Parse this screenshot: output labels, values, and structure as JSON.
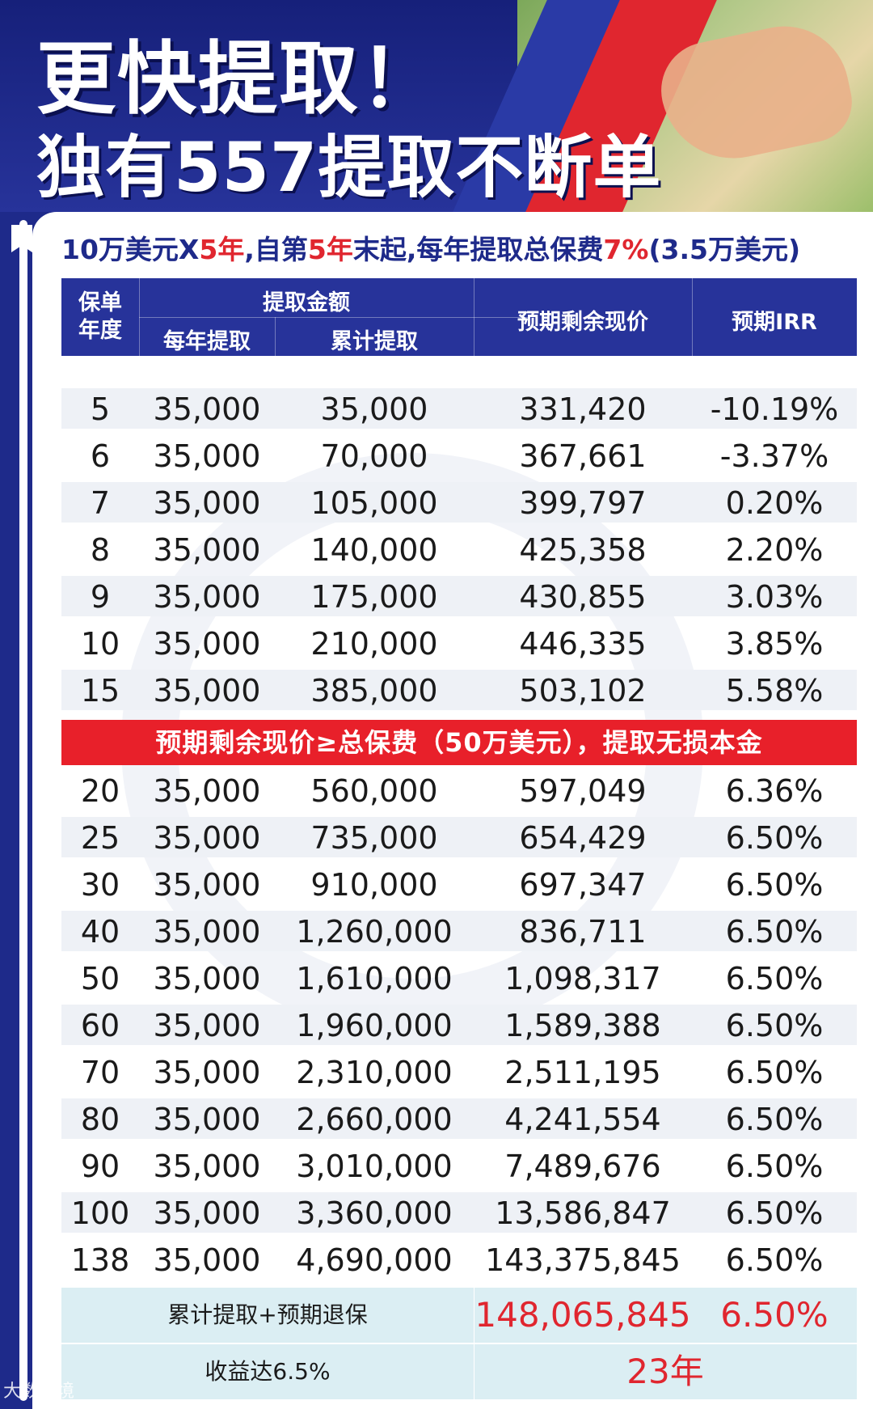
{
  "header": {
    "title_line1": "更快提取！",
    "title_line2": "独有557提取不断单"
  },
  "subtitle": {
    "p1": "10万美元X",
    "h1": "5年",
    "p2": ",自第",
    "h2": "5年",
    "p3": "末起,每年提取总保费",
    "h3": "7%",
    "p4": "(3.5万美元)"
  },
  "table": {
    "headers": {
      "policy_year": "保单年度",
      "withdrawal_amount": "提取金额",
      "annual_withdrawal": "每年提取",
      "cumulative_withdrawal": "累计提取",
      "expected_cash_value": "预期剩余现价",
      "expected_irr": "预期IRR"
    },
    "rows_before": [
      {
        "year": "5",
        "annual": "35,000",
        "cumulative": "35,000",
        "cash_value": "331,420",
        "irr": "-10.19%"
      },
      {
        "year": "6",
        "annual": "35,000",
        "cumulative": "70,000",
        "cash_value": "367,661",
        "irr": "-3.37%"
      },
      {
        "year": "7",
        "annual": "35,000",
        "cumulative": "105,000",
        "cash_value": "399,797",
        "irr": "0.20%"
      },
      {
        "year": "8",
        "annual": "35,000",
        "cumulative": "140,000",
        "cash_value": "425,358",
        "irr": "2.20%"
      },
      {
        "year": "9",
        "annual": "35,000",
        "cumulative": "175,000",
        "cash_value": "430,855",
        "irr": "3.03%"
      },
      {
        "year": "10",
        "annual": "35,000",
        "cumulative": "210,000",
        "cash_value": "446,335",
        "irr": "3.85%"
      },
      {
        "year": "15",
        "annual": "35,000",
        "cumulative": "385,000",
        "cash_value": "503,102",
        "irr": "5.58%"
      }
    ],
    "banner": "预期剩余现价≥总保费（50万美元），提取无损本金",
    "rows_after": [
      {
        "year": "20",
        "annual": "35,000",
        "cumulative": "560,000",
        "cash_value": "597,049",
        "irr": "6.36%"
      },
      {
        "year": "25",
        "annual": "35,000",
        "cumulative": "735,000",
        "cash_value": "654,429",
        "irr": "6.50%"
      },
      {
        "year": "30",
        "annual": "35,000",
        "cumulative": "910,000",
        "cash_value": "697,347",
        "irr": "6.50%"
      },
      {
        "year": "40",
        "annual": "35,000",
        "cumulative": "1,260,000",
        "cash_value": "836,711",
        "irr": "6.50%"
      },
      {
        "year": "50",
        "annual": "35,000",
        "cumulative": "1,610,000",
        "cash_value": "1,098,317",
        "irr": "6.50%"
      },
      {
        "year": "60",
        "annual": "35,000",
        "cumulative": "1,960,000",
        "cash_value": "1,589,388",
        "irr": "6.50%"
      },
      {
        "year": "70",
        "annual": "35,000",
        "cumulative": "2,310,000",
        "cash_value": "2,511,195",
        "irr": "6.50%"
      },
      {
        "year": "80",
        "annual": "35,000",
        "cumulative": "2,660,000",
        "cash_value": "4,241,554",
        "irr": "6.50%"
      },
      {
        "year": "90",
        "annual": "35,000",
        "cumulative": "3,010,000",
        "cash_value": "7,489,676",
        "irr": "6.50%"
      },
      {
        "year": "100",
        "annual": "35,000",
        "cumulative": "3,360,000",
        "cash_value": "13,586,847",
        "irr": "6.50%"
      },
      {
        "year": "138",
        "annual": "35,000",
        "cumulative": "4,690,000",
        "cash_value": "143,375,845",
        "irr": "6.50%"
      }
    ],
    "summary": {
      "total_label": "累计提取+预期退保",
      "total_value": "148,065,845",
      "total_irr": "6.50%",
      "yield_label": "收益达6.5%",
      "yield_years": "23年"
    }
  },
  "footer": {
    "watermark": "大数跨境"
  },
  "colors": {
    "navy": "#1e2a8a",
    "header_blue": "#27339a",
    "red": "#e0262f",
    "summary_bg": "#dbeef3",
    "row_alt": "#eef1f6"
  }
}
